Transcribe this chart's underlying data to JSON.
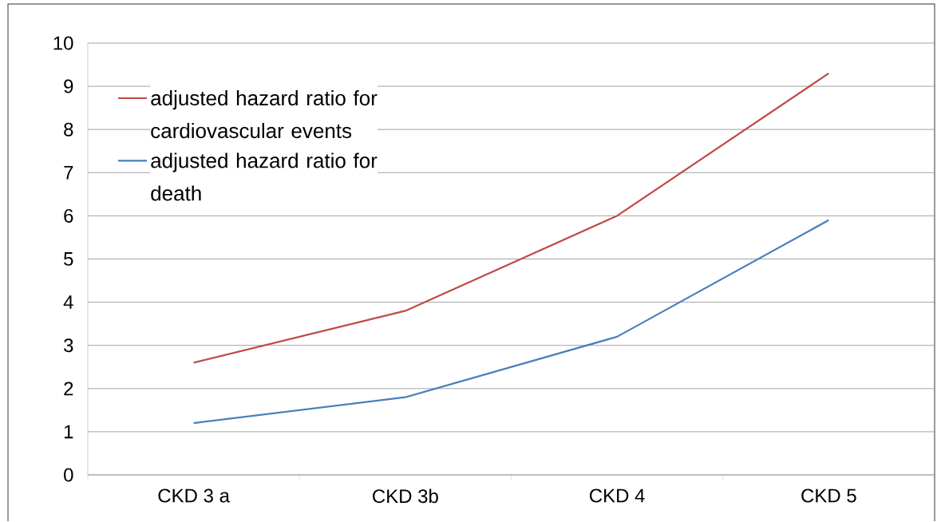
{
  "chart_data": {
    "type": "line",
    "categories": [
      "CKD 3 a",
      "CKD 3b",
      "CKD 4",
      "CKD 5"
    ],
    "series": [
      {
        "name": "adjusted hazard ratio for cardiovascular events",
        "color": "#be4b48",
        "values": [
          2.6,
          3.8,
          6.0,
          9.3
        ]
      },
      {
        "name": "adjusted hazard ratio for death",
        "color": "#4a7ebb",
        "values": [
          1.2,
          1.8,
          3.2,
          5.9
        ]
      }
    ],
    "ylim": [
      0,
      10
    ],
    "yticks": [
      0,
      1,
      2,
      3,
      4,
      5,
      6,
      7,
      8,
      9,
      10
    ],
    "grid": "y",
    "legend": "top left",
    "marker": "none",
    "line_style": "solid"
  }
}
